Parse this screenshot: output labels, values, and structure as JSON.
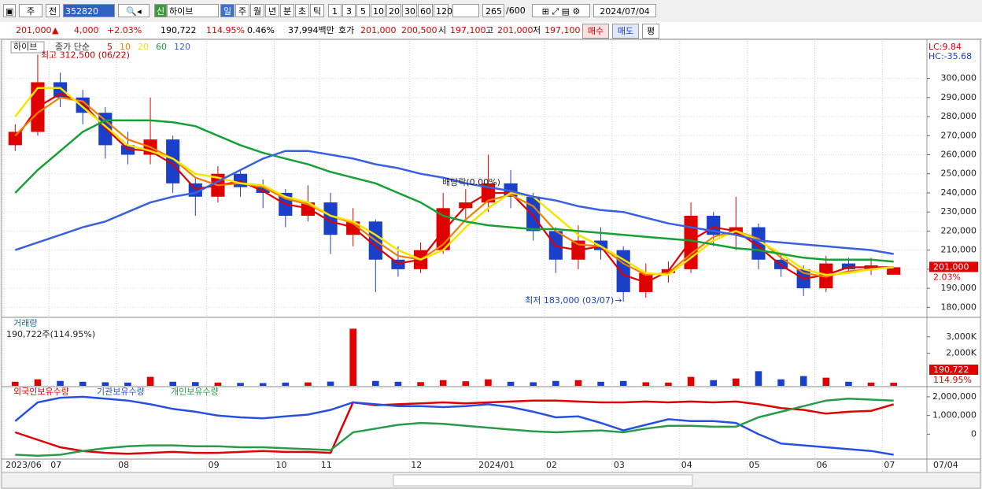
{
  "toolbar": {
    "period_type": "주",
    "prev": "전",
    "code": "352820",
    "badge": "신",
    "name": "하이브",
    "intervals": [
      "일",
      "주",
      "월",
      "년",
      "분",
      "초",
      "틱"
    ],
    "minutes": [
      "1",
      "3",
      "5",
      "10",
      "20",
      "30",
      "60",
      "120"
    ],
    "count": "265",
    "count_max": "/600",
    "date": "2024/07/04"
  },
  "quote": {
    "price": "201,000",
    "arrow": "▲",
    "change": "4,000",
    "change_pct": "+2.03%",
    "volume": "190,722",
    "volume_ratio": "114.95%",
    "turnover": "0.46%",
    "amount": "37,994백만",
    "ask_label": "호가",
    "ask": "201,000",
    "bid": "200,500",
    "open_label": "시",
    "open": "197,100",
    "high_label": "고",
    "high": "201,000",
    "low_label": "저",
    "low": "197,100",
    "buy": "매수",
    "sell": "매도",
    "avg": "평"
  },
  "chart_data": [
    {
      "type": "candlestick",
      "title": "하이브",
      "legend_title": "종가 단순",
      "open": [
        265000,
        272000,
        298000,
        290000,
        282000,
        265000,
        260000,
        268000,
        245000,
        238000,
        250000,
        243000,
        240000,
        228000,
        235000,
        218000,
        225000,
        205000,
        200000,
        210000,
        232000,
        235000,
        245000,
        238000,
        220000,
        205000,
        215000,
        210000,
        188000,
        198000,
        200000,
        228000,
        218000,
        222000,
        205000,
        200000,
        190000,
        203000,
        200000,
        197100
      ],
      "high": [
        276000,
        312500,
        303000,
        294000,
        285000,
        272000,
        290000,
        270000,
        248000,
        254000,
        252000,
        247000,
        242000,
        244000,
        240000,
        232000,
        226000,
        212000,
        214000,
        240000,
        242000,
        260000,
        252000,
        240000,
        222000,
        223000,
        222000,
        212000,
        203000,
        204000,
        235000,
        230000,
        238000,
        224000,
        208000,
        202000,
        207000,
        206000,
        206000,
        201000
      ],
      "low": [
        262000,
        270000,
        285000,
        276000,
        258000,
        255000,
        255000,
        240000,
        228000,
        235000,
        238000,
        232000,
        222000,
        225000,
        208000,
        212000,
        188000,
        196000,
        198000,
        208000,
        226000,
        230000,
        232000,
        215000,
        198000,
        200000,
        205000,
        183000,
        185000,
        193000,
        198000,
        212000,
        210000,
        200000,
        196000,
        186000,
        188000,
        198000,
        197000,
        197100
      ],
      "close": [
        272000,
        298000,
        290000,
        282000,
        265000,
        260000,
        268000,
        245000,
        238000,
        250000,
        243000,
        240000,
        228000,
        235000,
        218000,
        225000,
        205000,
        200000,
        210000,
        232000,
        235000,
        245000,
        238000,
        220000,
        205000,
        215000,
        210000,
        188000,
        198000,
        200000,
        228000,
        218000,
        222000,
        205000,
        200000,
        190000,
        203000,
        200000,
        202000,
        201000
      ],
      "series": [
        {
          "name": "5",
          "color": "#e00000",
          "values": [
            268000,
            285000,
            292000,
            287000,
            274000,
            263000,
            262000,
            255000,
            242000,
            244000,
            246000,
            241000,
            234000,
            232000,
            225000,
            222000,
            212000,
            203000,
            205000,
            220000,
            233000,
            240000,
            240000,
            228000,
            212000,
            210000,
            212000,
            197000,
            193000,
            199000,
            215000,
            222000,
            220000,
            212000,
            202000,
            195000,
            197000,
            201000,
            201000,
            201000
          ]
        },
        {
          "name": "10",
          "color": "#f08000",
          "values": [
            270000,
            282000,
            290000,
            288000,
            278000,
            268000,
            264000,
            258000,
            248000,
            244000,
            245000,
            243000,
            237000,
            234000,
            228000,
            224000,
            215000,
            207000,
            205000,
            213000,
            226000,
            236000,
            239000,
            233000,
            220000,
            213000,
            212000,
            203000,
            197000,
            198000,
            208000,
            217000,
            220000,
            216000,
            206000,
            198000,
            196000,
            199000,
            200000,
            201000
          ]
        },
        {
          "name": "20",
          "color": "#f5e600",
          "values": [
            280000,
            295000,
            295000,
            285000,
            275000,
            265000,
            262000,
            258000,
            250000,
            248000,
            245000,
            244000,
            238000,
            235000,
            228000,
            225000,
            218000,
            210000,
            205000,
            210000,
            222000,
            232000,
            240000,
            238000,
            228000,
            218000,
            212000,
            205000,
            198000,
            197000,
            206000,
            215000,
            220000,
            215000,
            208000,
            200000,
            197000,
            198000,
            200000,
            201000
          ]
        },
        {
          "name": "60",
          "color": "#16a035",
          "values": [
            240000,
            252000,
            262000,
            272000,
            278000,
            278000,
            278000,
            277000,
            275000,
            270000,
            265000,
            261000,
            258000,
            255000,
            251000,
            248000,
            245000,
            240000,
            235000,
            228000,
            225000,
            223000,
            222000,
            221000,
            221000,
            220000,
            219000,
            218000,
            217000,
            216000,
            215000,
            213000,
            211000,
            210000,
            208000,
            206000,
            205000,
            205000,
            205000,
            204000
          ]
        },
        {
          "name": "120",
          "color": "#3a5fe0",
          "values": [
            210000,
            214000,
            218000,
            222000,
            225000,
            230000,
            235000,
            238000,
            240000,
            246000,
            252000,
            258000,
            262000,
            262000,
            260000,
            258000,
            255000,
            253000,
            250000,
            248000,
            245000,
            243000,
            241000,
            238000,
            236000,
            233000,
            231000,
            230000,
            227000,
            224000,
            222000,
            220000,
            218000,
            215000,
            214000,
            213000,
            212000,
            211000,
            210000,
            208000
          ]
        }
      ],
      "ylim": [
        176000,
        318000
      ],
      "yticks": [
        {
          "value": 180000,
          "label": "180,000"
        },
        {
          "value": 190000,
          "label": "190,000"
        },
        {
          "value": 200000,
          "label": "200,000"
        },
        {
          "value": 210000,
          "label": "210,000"
        },
        {
          "value": 220000,
          "label": "220,000"
        },
        {
          "value": 230000,
          "label": "230,000"
        },
        {
          "value": 240000,
          "label": "240,000"
        },
        {
          "value": 250000,
          "label": "250,000"
        },
        {
          "value": 260000,
          "label": "260,000"
        },
        {
          "value": 270000,
          "label": "270,000"
        },
        {
          "value": 280000,
          "label": "280,000"
        },
        {
          "value": 290000,
          "label": "290,000"
        },
        {
          "value": 300000,
          "label": "300,000"
        }
      ],
      "grid": true,
      "up_color": "#e00000",
      "down_color": "#1a3fc8",
      "annotations": {
        "high": "최고 312,500 (06/22)",
        "low": "최저 183,000 (03/07)",
        "dividend": "배당락(0.00%)"
      },
      "right_labels": {
        "lc": "LC:9.84",
        "hc": "HC:-35.68",
        "last": "201,000",
        "change": "2.03%"
      }
    },
    {
      "type": "bar",
      "title": "거래량",
      "subtitle": "190,722주(114.95%)",
      "values": [
        250000,
        400000,
        300000,
        250000,
        220000,
        200000,
        550000,
        250000,
        230000,
        200000,
        180000,
        170000,
        200000,
        210000,
        260000,
        3500000,
        300000,
        250000,
        230000,
        350000,
        280000,
        400000,
        250000,
        220000,
        300000,
        350000,
        250000,
        300000,
        220000,
        200000,
        550000,
        350000,
        450000,
        900000,
        400000,
        600000,
        500000,
        250000,
        200000,
        190722
      ],
      "ylim": [
        0,
        4100000
      ],
      "yticks": [
        {
          "value": 2000000,
          "label": "2,000K"
        },
        {
          "value": 3000000,
          "label": "3,000K"
        }
      ],
      "right_labels": {
        "last": "190,722",
        "ratio": "114.95%"
      }
    },
    {
      "type": "line",
      "categories": [
        "2023/06",
        null,
        "07",
        null,
        null,
        "08",
        null,
        null,
        null,
        "09",
        null,
        null,
        "10",
        null,
        "11",
        null,
        null,
        null,
        "12",
        null,
        null,
        "2024/01",
        null,
        null,
        "02",
        null,
        null,
        "03",
        null,
        null,
        "04",
        null,
        null,
        "05",
        null,
        null,
        "06",
        null,
        null,
        "07"
      ],
      "series": [
        {
          "name": "외국인보유수량",
          "color": "#e00000",
          "values": [
            100000,
            -300000,
            -700000,
            -900000,
            -1000000,
            -1050000,
            -1000000,
            -950000,
            -1000000,
            -1000000,
            -950000,
            -900000,
            -950000,
            -950000,
            -1000000,
            1700000,
            1550000,
            1600000,
            1650000,
            1700000,
            1650000,
            1700000,
            1750000,
            1800000,
            1800000,
            1750000,
            1700000,
            1700000,
            1750000,
            1700000,
            1750000,
            1700000,
            1750000,
            1600000,
            1400000,
            1300000,
            1100000,
            1200000,
            1250000,
            1600000
          ]
        },
        {
          "name": "기관보유수량",
          "color": "#2850e0",
          "values": [
            700000,
            1700000,
            1950000,
            2000000,
            1900000,
            1800000,
            1600000,
            1350000,
            1200000,
            1000000,
            900000,
            850000,
            950000,
            1050000,
            1300000,
            1700000,
            1600000,
            1500000,
            1500000,
            1450000,
            1500000,
            1600000,
            1450000,
            1200000,
            900000,
            950000,
            600000,
            200000,
            500000,
            800000,
            700000,
            700000,
            600000,
            0,
            -500000,
            -600000,
            -700000,
            -800000,
            -900000,
            -1100000
          ]
        },
        {
          "name": "개인보유수량",
          "color": "#2a9a4a",
          "values": [
            -1100000,
            -1150000,
            -1100000,
            -900000,
            -750000,
            -650000,
            -600000,
            -600000,
            -650000,
            -650000,
            -700000,
            -700000,
            -750000,
            -800000,
            -850000,
            100000,
            300000,
            500000,
            600000,
            550000,
            450000,
            350000,
            250000,
            150000,
            100000,
            150000,
            200000,
            100000,
            300000,
            450000,
            450000,
            400000,
            400000,
            900000,
            1200000,
            1500000,
            1800000,
            1900000,
            1850000,
            1800000
          ]
        }
      ],
      "ylim": [
        -1290000,
        2460000
      ],
      "yticks": [
        {
          "value": 2000000,
          "label": "2,000,000"
        },
        {
          "value": 1000000,
          "label": "1,000,000"
        },
        0
      ]
    }
  ],
  "status": {
    "date_label": "07/04"
  }
}
